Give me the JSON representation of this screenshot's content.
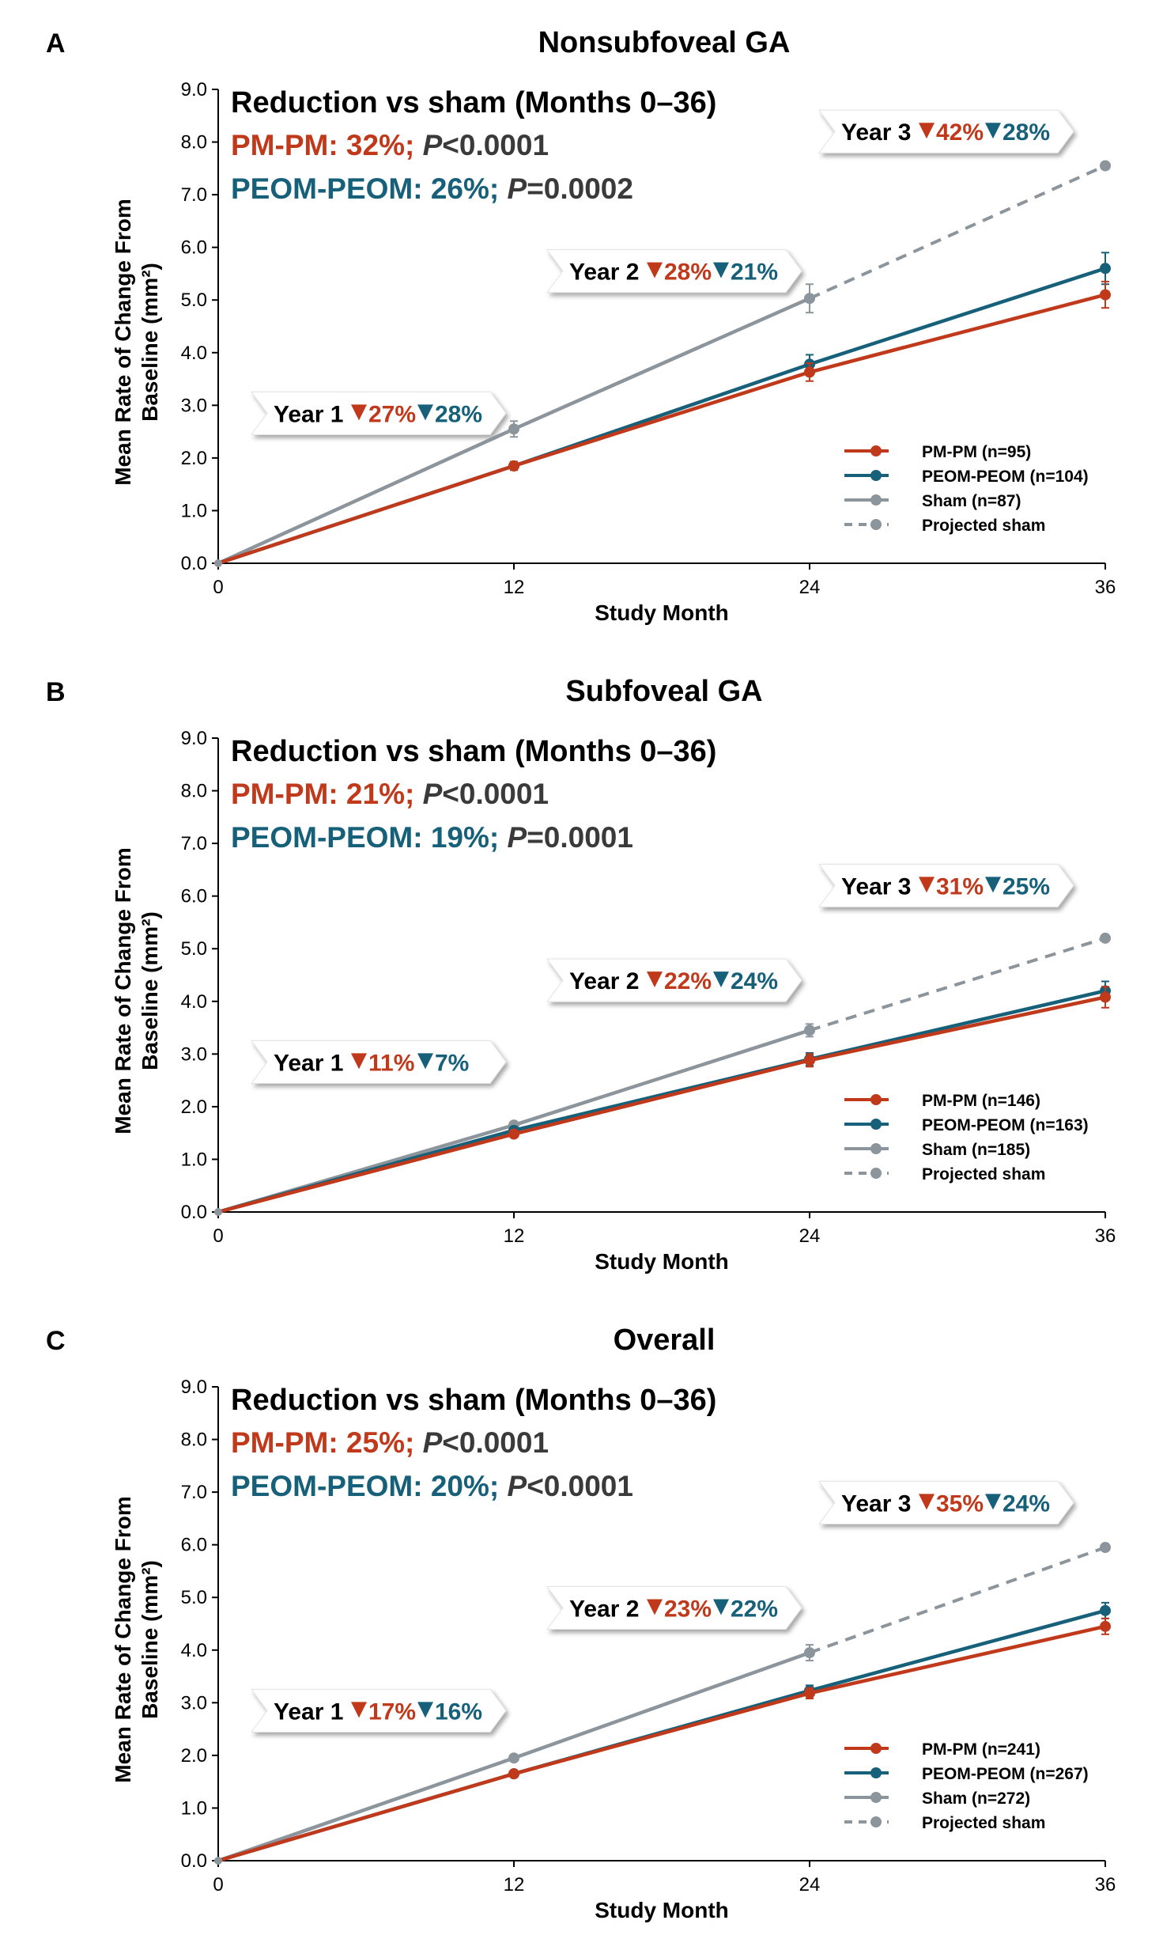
{
  "colors": {
    "pm": "#C0391B",
    "peom": "#17607A",
    "sham": "#8C949C",
    "text": "#000000",
    "pgray": "#3A3A3A",
    "axis": "#000000"
  },
  "legend_labels": [
    "PM-PM",
    "PEOM-PEOM",
    "Sham",
    "Projected sham"
  ],
  "chart_data": [
    {
      "type": "line",
      "panel_letter": "A",
      "title": "Nonsubfoveal GA",
      "xlabel": "Study Month",
      "ylabel_line1": "Mean Rate of Change From",
      "ylabel_line2": "Baseline (mm²)",
      "ylim": [
        0,
        9
      ],
      "xlim": [
        0,
        36
      ],
      "x_ticks": [
        "0",
        "12",
        "24",
        "36"
      ],
      "y_ticks": [
        "0.0",
        "1.0",
        "2.0",
        "3.0",
        "4.0",
        "5.0",
        "6.0",
        "7.0",
        "8.0",
        "9.0"
      ],
      "summary": {
        "heading": "Reduction vs sham (Months 0–36)",
        "pm_label": "PM-PM: 32%;",
        "pm_p": "P",
        "pm_pval": "<0.0001",
        "peom_label": "PEOM-PEOM: 26%;",
        "peom_p": "P",
        "peom_pval": "=0.0002"
      },
      "series": [
        {
          "name": "PM-PM (n=95)",
          "key": "pm",
          "x": [
            0,
            12,
            24,
            36
          ],
          "values": [
            0,
            1.85,
            3.63,
            5.1
          ],
          "err": [
            0,
            0.08,
            0.17,
            0.25
          ]
        },
        {
          "name": "PEOM-PEOM (n=104)",
          "key": "peom",
          "x": [
            0,
            12,
            24,
            36
          ],
          "values": [
            0,
            1.85,
            3.78,
            5.6
          ],
          "err": [
            0,
            0.08,
            0.18,
            0.3
          ]
        },
        {
          "name": "Sham (n=87)",
          "key": "sham",
          "x": [
            0,
            12,
            24
          ],
          "values": [
            0,
            2.55,
            5.03
          ],
          "err": [
            0,
            0.15,
            0.27
          ]
        },
        {
          "name": "Projected sham",
          "key": "proj",
          "x": [
            24,
            36
          ],
          "values": [
            5.03,
            7.55
          ],
          "err": [
            0,
            0
          ]
        }
      ],
      "annotations": [
        {
          "year": "Year 1",
          "pm": "27%",
          "peom": "28%",
          "at_x": 12,
          "level": 2.85
        },
        {
          "year": "Year 2",
          "pm": "28%",
          "peom": "21%",
          "at_x": 24,
          "level": 5.55
        },
        {
          "year": "Year 3",
          "pm": "42%",
          "peom": "28%",
          "at_x": 36,
          "level": 8.2
        }
      ]
    },
    {
      "type": "line",
      "panel_letter": "B",
      "title": "Subfoveal GA",
      "xlabel": "Study Month",
      "ylabel_line1": "Mean Rate of Change From",
      "ylabel_line2": "Baseline (mm²)",
      "ylim": [
        0,
        9
      ],
      "xlim": [
        0,
        36
      ],
      "x_ticks": [
        "0",
        "12",
        "24",
        "36"
      ],
      "y_ticks": [
        "0.0",
        "1.0",
        "2.0",
        "3.0",
        "4.0",
        "5.0",
        "6.0",
        "7.0",
        "8.0",
        "9.0"
      ],
      "summary": {
        "heading": "Reduction vs sham (Months 0–36)",
        "pm_label": "PM-PM: 21%;",
        "pm_p": "P",
        "pm_pval": "<0.0001",
        "peom_label": "PEOM-PEOM: 19%;",
        "peom_p": "P",
        "peom_pval": "=0.0001"
      },
      "series": [
        {
          "name": "PM-PM (n=146)",
          "key": "pm",
          "x": [
            0,
            12,
            24,
            36
          ],
          "values": [
            0,
            1.48,
            2.88,
            4.08
          ],
          "err": [
            0,
            0.06,
            0.12,
            0.2
          ]
        },
        {
          "name": "PEOM-PEOM (n=163)",
          "key": "peom",
          "x": [
            0,
            12,
            24,
            36
          ],
          "values": [
            0,
            1.55,
            2.9,
            4.2
          ],
          "err": [
            0,
            0.06,
            0.12,
            0.18
          ]
        },
        {
          "name": "Sham (n=185)",
          "key": "sham",
          "x": [
            0,
            12,
            24
          ],
          "values": [
            0,
            1.65,
            3.45
          ],
          "err": [
            0,
            0.06,
            0.12
          ]
        },
        {
          "name": "Projected sham",
          "key": "proj",
          "x": [
            24,
            36
          ],
          "values": [
            3.45,
            5.2
          ],
          "err": [
            0,
            0
          ]
        }
      ],
      "annotations": [
        {
          "year": "Year 1",
          "pm": "11%",
          "peom": "7%",
          "at_x": 12,
          "level": 2.85
        },
        {
          "year": "Year 2",
          "pm": "22%",
          "peom": "24%",
          "at_x": 24,
          "level": 4.4
        },
        {
          "year": "Year 3",
          "pm": "31%",
          "peom": "25%",
          "at_x": 36,
          "level": 6.2
        }
      ]
    },
    {
      "type": "line",
      "panel_letter": "C",
      "title": "Overall",
      "xlabel": "Study Month",
      "ylabel_line1": "Mean Rate of Change From",
      "ylabel_line2": "Baseline (mm²)",
      "ylim": [
        0,
        9
      ],
      "xlim": [
        0,
        36
      ],
      "x_ticks": [
        "0",
        "12",
        "24",
        "36"
      ],
      "y_ticks": [
        "0.0",
        "1.0",
        "2.0",
        "3.0",
        "4.0",
        "5.0",
        "6.0",
        "7.0",
        "8.0",
        "9.0"
      ],
      "summary": {
        "heading": "Reduction vs sham (Months 0–36)",
        "pm_label": "PM-PM: 25%;",
        "pm_p": "P",
        "pm_pval": "<0.0001",
        "peom_label": "PEOM-PEOM: 20%;",
        "peom_p": "P",
        "peom_pval": "<0.0001"
      },
      "series": [
        {
          "name": "PM-PM (n=241)",
          "key": "pm",
          "x": [
            0,
            12,
            24,
            36
          ],
          "values": [
            0,
            1.65,
            3.18,
            4.45
          ],
          "err": [
            0,
            0.04,
            0.1,
            0.15
          ]
        },
        {
          "name": "PEOM-PEOM (n=267)",
          "key": "peom",
          "x": [
            0,
            12,
            24,
            36
          ],
          "values": [
            0,
            1.65,
            3.23,
            4.75
          ],
          "err": [
            0,
            0.04,
            0.1,
            0.15
          ]
        },
        {
          "name": "Sham (n=272)",
          "key": "sham",
          "x": [
            0,
            12,
            24
          ],
          "values": [
            0,
            1.95,
            3.95
          ],
          "err": [
            0,
            0.06,
            0.15
          ]
        },
        {
          "name": "Projected sham",
          "key": "proj",
          "x": [
            24,
            36
          ],
          "values": [
            3.95,
            5.95
          ],
          "err": [
            0,
            0
          ]
        }
      ],
      "annotations": [
        {
          "year": "Year 1",
          "pm": "17%",
          "peom": "16%",
          "at_x": 12,
          "level": 2.85
        },
        {
          "year": "Year 2",
          "pm": "23%",
          "peom": "22%",
          "at_x": 24,
          "level": 4.8
        },
        {
          "year": "Year 3",
          "pm": "35%",
          "peom": "24%",
          "at_x": 36,
          "level": 6.8
        }
      ]
    }
  ]
}
